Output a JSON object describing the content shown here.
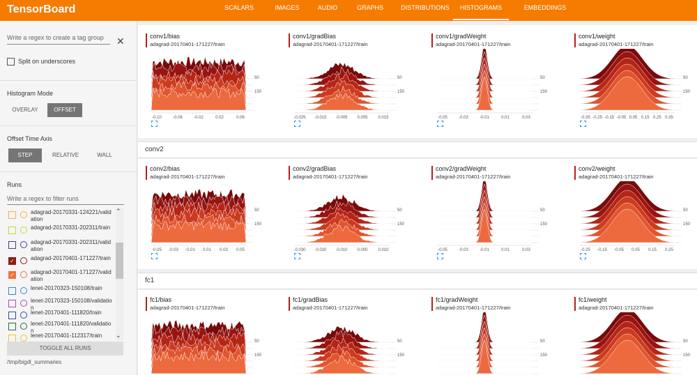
{
  "header": {
    "title": "TensorBoard",
    "tabs": [
      "SCALARS",
      "IMAGES",
      "AUDIO",
      "GRAPHS",
      "DISTRIBUTIONS",
      "HISTOGRAMS",
      "EMBEDDINGS"
    ],
    "active_tab": 5
  },
  "sidebar": {
    "tag_regex_placeholder": "Write a regex to create a tag group",
    "split_label": "Split on underscores",
    "histogram_mode": {
      "label": "Histogram Mode",
      "options": [
        "OVERLAY",
        "OFFSET"
      ],
      "active": 1
    },
    "offset_axis": {
      "label": "Offset Time Axis",
      "options": [
        "STEP",
        "RELATIVE",
        "WALL"
      ],
      "active": 0
    },
    "runs_label": "Runs",
    "runs_placeholder": "Write a regex to filter runs",
    "runs": [
      {
        "name": "adagrad-20170331-124221/validation",
        "color": "#f6b042",
        "checked": false
      },
      {
        "name": "adagrad-20170331-202311/train",
        "color": "#c6d43c",
        "checked": false
      },
      {
        "name": "adagrad-20170331-202311/validation",
        "color": "#4a3a9a",
        "checked": false
      },
      {
        "name": "adagrad-20170401-171227/train",
        "color": "#8e1b12",
        "checked": true
      },
      {
        "name": "adagrad-20170401-171227/validation",
        "color": "#f2703f",
        "checked": true
      },
      {
        "name": "lenet-20170323-150108/train",
        "color": "#2a8ad8",
        "checked": false
      },
      {
        "name": "lenet-20170323-150108/validation",
        "color": "#a24cc0",
        "checked": false
      },
      {
        "name": "lenet-20170401-111820/train",
        "color": "#2b4aa8",
        "checked": false
      },
      {
        "name": "lenet-20170401-111820/validation",
        "color": "#1f6e3a",
        "checked": false
      },
      {
        "name": "lenet-20170401-112317/train",
        "color": "#f2c12e",
        "checked": false
      }
    ],
    "toggle_label": "TOGGLE ALL RUNS",
    "logdir": "/tmp/bigdl_summaries"
  },
  "sections": [
    {
      "cards": [
        {
          "title": "conv1/bias",
          "run": "adagrad-20170401-171227/train",
          "ticks": [
            "-0.10",
            "-0.06",
            "-0.02",
            "0.02",
            "0.06"
          ],
          "steps": [
            "50",
            "150"
          ]
        },
        {
          "title": "conv1/gradBias",
          "run": "adagrad-20170401-171227/train",
          "ticks": [
            "-0.025",
            "-0.015",
            "-0.005",
            "0.005",
            "0.015"
          ],
          "steps": [
            "50",
            "150"
          ]
        },
        {
          "title": "conv1/gradWeight",
          "run": "adagrad-20170401-171227/train",
          "ticks": [
            "-0.05",
            "-0.03",
            "-0.01",
            "0.01",
            "0.03"
          ],
          "steps": [
            "50",
            "150"
          ]
        },
        {
          "title": "conv1/weight",
          "run": "adagrad-20170401-171227/train",
          "ticks": [
            "-0.35",
            "-0.25",
            "-0.15",
            "-0.05",
            "0.05",
            "0.15",
            "0.25",
            "0.35"
          ],
          "steps": [
            "50",
            "150"
          ]
        }
      ]
    },
    {
      "name": "conv2",
      "cards": [
        {
          "title": "conv2/bias",
          "run": "adagrad-20170401-171227/train",
          "ticks": [
            "-0.05",
            "-0.03",
            "-0.01",
            "0.01",
            "0.03",
            "0.05"
          ],
          "steps": [
            "50",
            "150"
          ]
        },
        {
          "title": "conv2/gradBias",
          "run": "adagrad-20170401-171227/train",
          "ticks": [
            "-0.030",
            "-0.020",
            "-0.010",
            "0.000",
            "0.010"
          ],
          "steps": [
            "50",
            "150"
          ]
        },
        {
          "title": "conv2/gradWeight",
          "run": "adagrad-20170401-171227/train",
          "ticks": [
            "-0.05",
            "-0.03",
            "-0.01",
            "0.01",
            "0.03"
          ],
          "steps": [
            "50",
            "150"
          ]
        },
        {
          "title": "conv2/weight",
          "run": "adagrad-20170401-171227/train",
          "ticks": [
            "-0.25",
            "-0.15",
            "-0.05",
            "0.05",
            "0.15",
            "0.25"
          ],
          "steps": [
            "50",
            "150"
          ]
        }
      ]
    },
    {
      "name": "fc1",
      "cards": [
        {
          "title": "fc1/bias",
          "run": "adagrad-20170401-171227/train",
          "steps": [
            "50",
            "150"
          ]
        },
        {
          "title": "fc1/gradBias",
          "run": "adagrad-20170401-171227/train",
          "steps": [
            "50",
            "150"
          ]
        },
        {
          "title": "fc1/gradWeight",
          "run": "adagrad-20170401-171227/train",
          "steps": [
            "50",
            "150"
          ]
        },
        {
          "title": "fc1/weight",
          "run": "adagrad-20170401-171227/train",
          "steps": [
            "50",
            "150"
          ]
        }
      ]
    }
  ]
}
